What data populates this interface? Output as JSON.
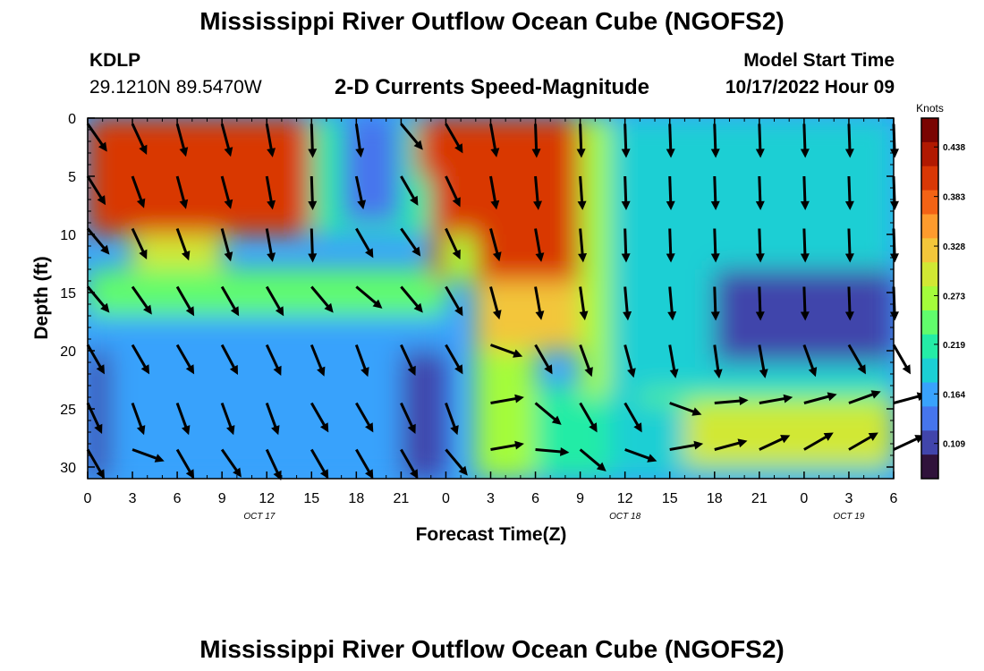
{
  "header": {
    "title_top": "Mississippi River Outflow Ocean Cube (NGOFS2)",
    "station": "KDLP",
    "coordinates": "29.1210N  89.5470W",
    "subtitle": "2-D Currents Speed-Magnitude",
    "model_label": "Model Start Time",
    "model_time": "10/17/2022 Hour 09",
    "title_bottom": "Mississippi River Outflow Ocean Cube (NGOFS2)"
  },
  "chart_data": {
    "type": "heatmap",
    "xlabel": "Forecast Time(Z)",
    "ylabel": "Depth (ft)",
    "x_range_hours": [
      0,
      54
    ],
    "y_range_ft": [
      0,
      31
    ],
    "x_ticks": [
      "0",
      "3",
      "6",
      "9",
      "12",
      "15",
      "18",
      "21",
      "0",
      "3",
      "6",
      "9",
      "12",
      "15",
      "18",
      "21",
      "0",
      "3",
      "6"
    ],
    "y_ticks": [
      "0",
      "5",
      "10",
      "15",
      "20",
      "25",
      "30"
    ],
    "date_labels": [
      {
        "text": "OCT 17",
        "hour": 11.5
      },
      {
        "text": "OCT 18",
        "hour": 36
      },
      {
        "text": "OCT 19",
        "hour": 51
      }
    ],
    "colorbar": {
      "label": "Knots",
      "min": 0.07,
      "max": 0.47,
      "ticks": [
        "0.438",
        "0.383",
        "0.328",
        "0.273",
        "0.219",
        "0.164",
        "0.109"
      ],
      "colors": [
        "#30123b",
        "#4145ab",
        "#4675ed",
        "#39a2fc",
        "#1bcfd4",
        "#24eca6",
        "#61fc6c",
        "#a4fc3b",
        "#d1e834",
        "#f3c63a",
        "#fe9b2d",
        "#f36315",
        "#d93806",
        "#b11901",
        "#7a0402"
      ]
    },
    "regions": [
      {
        "x": [
          0,
          15
        ],
        "y": [
          0,
          10
        ],
        "speed": 0.42
      },
      {
        "x": [
          3,
          9
        ],
        "y": [
          10,
          13
        ],
        "speed": 0.3
      },
      {
        "x": [
          0,
          24
        ],
        "y": [
          13,
          17
        ],
        "speed": 0.24
      },
      {
        "x": [
          0,
          24
        ],
        "y": [
          17,
          31
        ],
        "speed": 0.15
      },
      {
        "x": [
          0,
          1.5
        ],
        "y": [
          20,
          31
        ],
        "speed": 0.1
      },
      {
        "x": [
          15,
          23
        ],
        "y": [
          0,
          10
        ],
        "speed": 0.22
      },
      {
        "x": [
          17,
          21
        ],
        "y": [
          0,
          9
        ],
        "speed": 0.12
      },
      {
        "x": [
          22,
          24
        ],
        "y": [
          0,
          5
        ],
        "speed": 0.42
      },
      {
        "x": [
          21,
          24
        ],
        "y": [
          20,
          31
        ],
        "speed": 0.11
      },
      {
        "x": [
          23,
          33
        ],
        "y": [
          0,
          14
        ],
        "speed": 0.4
      },
      {
        "x": [
          26,
          33
        ],
        "y": [
          14,
          20
        ],
        "speed": 0.33
      },
      {
        "x": [
          24,
          26
        ],
        "y": [
          10,
          14
        ],
        "speed": 0.28
      },
      {
        "x": [
          26,
          30
        ],
        "y": [
          20,
          31
        ],
        "speed": 0.26
      },
      {
        "x": [
          30,
          37
        ],
        "y": [
          23,
          31
        ],
        "speed": 0.2
      },
      {
        "x": [
          33,
          35
        ],
        "y": [
          0,
          24
        ],
        "speed": 0.26
      },
      {
        "x": [
          35,
          54
        ],
        "y": [
          0,
          31
        ],
        "speed": 0.17
      },
      {
        "x": [
          42,
          54
        ],
        "y": [
          13,
          21
        ],
        "speed": 0.11
      },
      {
        "x": [
          37,
          54
        ],
        "y": [
          22,
          23.5
        ],
        "speed": 0.17
      },
      {
        "x": [
          37,
          54
        ],
        "y": [
          23.5,
          24.5
        ],
        "speed": 0.25
      },
      {
        "x": [
          40,
          54
        ],
        "y": [
          24.5,
          30
        ],
        "speed": 0.3
      }
    ],
    "vector_times": [
      0,
      3,
      6,
      9,
      12,
      15,
      18,
      21,
      24,
      27,
      30,
      33,
      36,
      39,
      42,
      45,
      48,
      51,
      54
    ],
    "vector_depths": [
      0.5,
      5,
      9.5,
      14.5,
      19.5,
      24.5,
      28.5
    ],
    "vector_directions_deg": [
      [
        145,
        155,
        165,
        165,
        170,
        178,
        172,
        140,
        150,
        170,
        178,
        178,
        178,
        178,
        178,
        178,
        178,
        178,
        178
      ],
      [
        148,
        160,
        165,
        165,
        170,
        178,
        168,
        150,
        155,
        170,
        175,
        176,
        178,
        178,
        178,
        178,
        178,
        178,
        178
      ],
      [
        140,
        155,
        160,
        165,
        170,
        178,
        150,
        145,
        155,
        165,
        170,
        175,
        178,
        178,
        178,
        178,
        178,
        178,
        178
      ],
      [
        140,
        145,
        150,
        150,
        150,
        140,
        130,
        140,
        150,
        165,
        170,
        172,
        175,
        175,
        178,
        178,
        178,
        178,
        178
      ],
      [
        150,
        150,
        150,
        152,
        155,
        158,
        160,
        155,
        150,
        110,
        150,
        160,
        165,
        170,
        172,
        170,
        160,
        150,
        150
      ],
      [
        155,
        160,
        160,
        160,
        160,
        150,
        150,
        155,
        160,
        80,
        130,
        150,
        150,
        110,
        85,
        80,
        75,
        70,
        75
      ],
      [
        150,
        110,
        150,
        145,
        155,
        150,
        150,
        150,
        140,
        80,
        95,
        130,
        110,
        80,
        75,
        65,
        60,
        60,
        65
      ]
    ],
    "grid": false,
    "legend": "right"
  }
}
